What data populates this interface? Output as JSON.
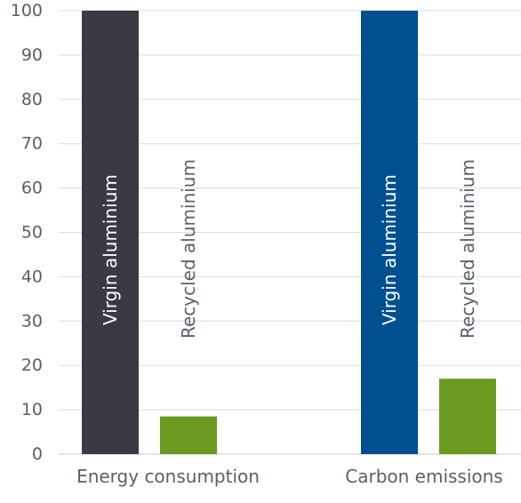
{
  "chart_data": {
    "type": "bar",
    "categories": [
      "Energy consumption",
      "Carbon emissions"
    ],
    "ylim": [
      0,
      100
    ],
    "yticks": [
      0,
      10,
      20,
      30,
      40,
      50,
      60,
      70,
      80,
      90,
      100
    ],
    "grid": true,
    "bars": [
      {
        "category": "Energy consumption",
        "label": "Virgin aluminium",
        "value": 100,
        "color": "#3a3a44",
        "label_color": "#ffffff"
      },
      {
        "category": "Energy consumption",
        "label": "Recycled aluminium",
        "value": 8.5,
        "color": "#6a9a1f",
        "label_color": "#59606a"
      },
      {
        "category": "Carbon emissions",
        "label": "Virgin aluminium",
        "value": 100,
        "color": "#00508f",
        "label_color": "#ffffff"
      },
      {
        "category": "Carbon emissions",
        "label": "Recycled aluminium",
        "value": 17,
        "color": "#6a9a1f",
        "label_color": "#59606a"
      }
    ]
  }
}
